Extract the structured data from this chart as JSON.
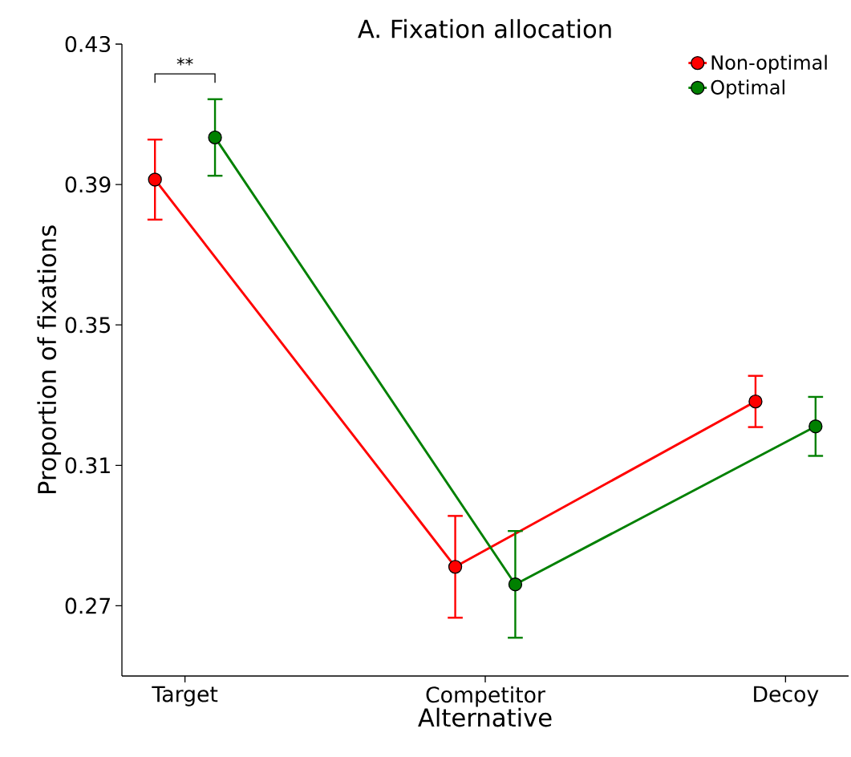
{
  "chart_data": {
    "type": "line",
    "title": "A. Fixation allocation",
    "xlabel": "Alternative",
    "ylabel": "Proportion of fixations",
    "categories": [
      "Target",
      "Competitor",
      "Decoy"
    ],
    "series": [
      {
        "name": "Non-optimal",
        "color": "#ff0000",
        "values": [
          0.3914,
          0.2811,
          0.3282
        ],
        "errors": [
          0.0114,
          0.0145,
          0.0073
        ]
      },
      {
        "name": "Optimal",
        "color": "#008000",
        "values": [
          0.4034,
          0.2761,
          0.3211
        ],
        "errors": [
          0.0109,
          0.0152,
          0.0084
        ]
      }
    ],
    "ylim": [
      0.25,
      0.43
    ],
    "yticks": [
      0.27,
      0.31,
      0.35,
      0.39,
      0.43
    ],
    "annotations": [
      "**"
    ],
    "legend": "top right",
    "marker": "circle",
    "line_style": "solid",
    "grid": false
  }
}
